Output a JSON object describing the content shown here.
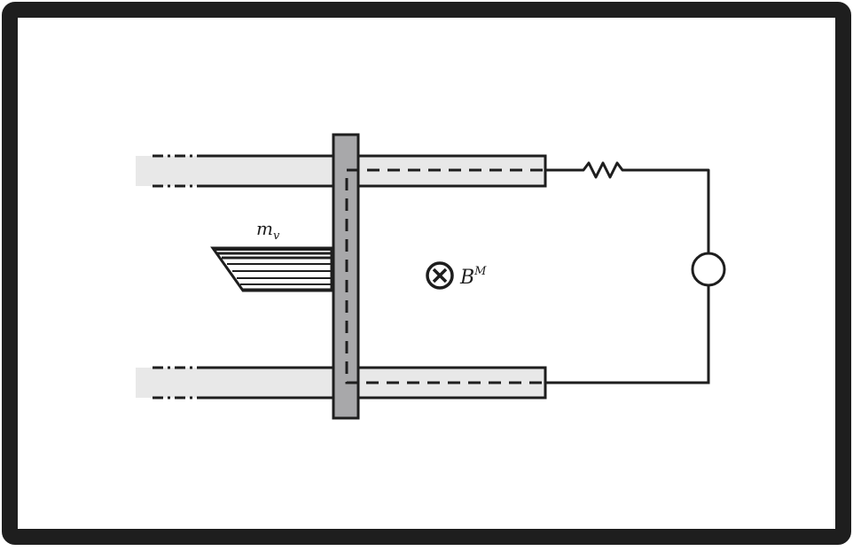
{
  "diagram": {
    "labels": {
      "projectile_mass": "m",
      "projectile_mass_sub": "v",
      "field_symbol": "B",
      "field_superscript": "M"
    },
    "icons": {
      "field_direction": "circled-times-icon",
      "resistor": "resistor-icon",
      "source": "voltage-source-icon"
    },
    "colors": {
      "border": "#1e1e1e",
      "background": "#ffffff",
      "rail_fill": "#e8e8e8",
      "armature_fill": "#a8a8aa",
      "line": "#1e1e1e"
    }
  }
}
